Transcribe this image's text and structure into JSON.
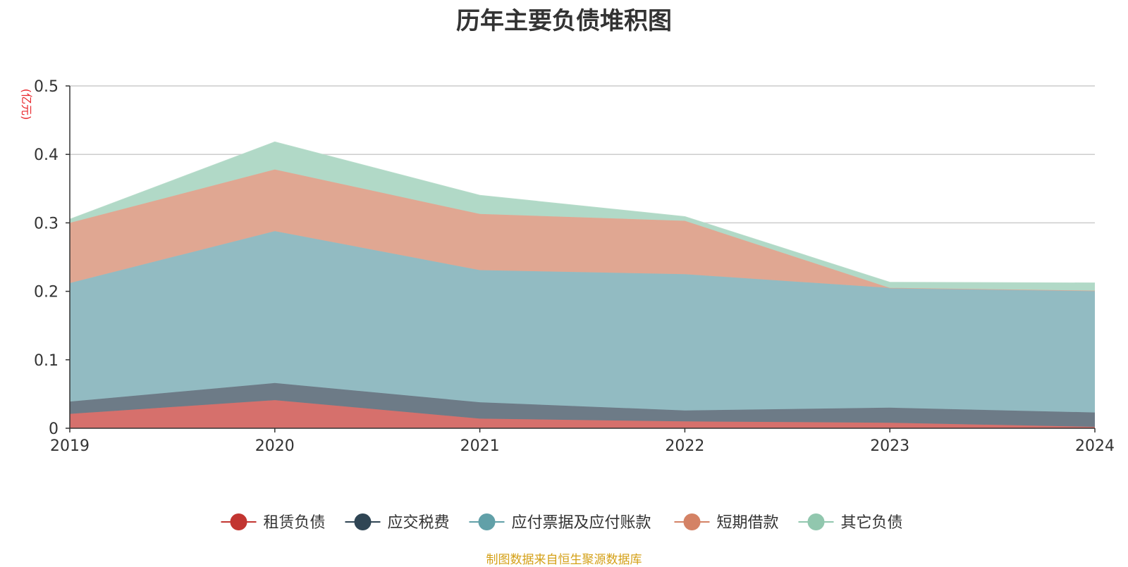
{
  "chart_data": {
    "type": "area",
    "stacked": true,
    "title": "历年主要负债堆积图",
    "unit": "(亿元)",
    "x": [
      "2019",
      "2020",
      "2021",
      "2022",
      "2023",
      "2024"
    ],
    "ylim": [
      0,
      0.5
    ],
    "yticks": [
      "0",
      "0.1",
      "0.2",
      "0.3",
      "0.4",
      "0.5"
    ],
    "grid": true,
    "legend_position": "bottom",
    "series": [
      {
        "name": "租赁负债",
        "color": "#c23531",
        "fill": "#d6706c",
        "values": [
          0.021,
          0.041,
          0.014,
          0.01,
          0.008,
          0.002
        ]
      },
      {
        "name": "应交税费",
        "color": "#2f4554",
        "fill": "#6d7b87",
        "values": [
          0.018,
          0.025,
          0.024,
          0.016,
          0.022,
          0.021
        ]
      },
      {
        "name": "应付票据及应付账款",
        "color": "#61a0a8",
        "fill": "#92bbc2",
        "values": [
          0.173,
          0.222,
          0.193,
          0.199,
          0.175,
          0.178
        ]
      },
      {
        "name": "短期借款",
        "color": "#d48265",
        "fill": "#e0a792",
        "values": [
          0.088,
          0.09,
          0.082,
          0.078,
          0.0,
          0.0
        ]
      },
      {
        "name": "其它负债",
        "color": "#91c7ae",
        "fill": "#b1d9c7",
        "values": [
          0.005,
          0.04,
          0.027,
          0.006,
          0.008,
          0.011
        ]
      }
    ],
    "source": "制图数据来自恒生聚源数据库"
  }
}
